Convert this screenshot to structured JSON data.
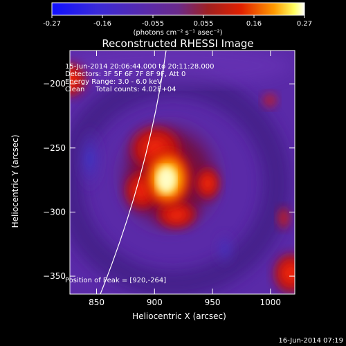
{
  "colorbar": {
    "ticks": [
      "-0.27",
      "-0.16",
      "-0.055",
      "0.055",
      "0.16",
      "0.27"
    ],
    "units_label": "(photons cm⁻² s⁻¹ asec⁻²)"
  },
  "title": "Reconstructed RHESSI Image",
  "info": {
    "line1": "15-Jun-2014 20:06:44.000 to 20:11:28.000",
    "line2": "Detectors: 3F 5F 6F 7F 8F 9F, Att 0",
    "line3": "Energy Range: 3.0 - 6.0 keV",
    "line4": "Clean     Total counts: 4.02E+04"
  },
  "peak_label": "Position of Peak = [920,-264]",
  "axes": {
    "xlabel": "Heliocentric X (arcsec)",
    "ylabel": "Heliocentric Y (arcsec)",
    "xticks": [
      "850",
      "900",
      "950",
      "1000"
    ],
    "yticks": [
      "−200",
      "−250",
      "−300",
      "−350"
    ]
  },
  "timestamp": "16-Jun-2014 07:19",
  "colors": {
    "background": "#000000",
    "colormap_low": "#1010ff",
    "colormap_mid": "#5a1fa0",
    "colormap_high": "#ffffff"
  }
}
